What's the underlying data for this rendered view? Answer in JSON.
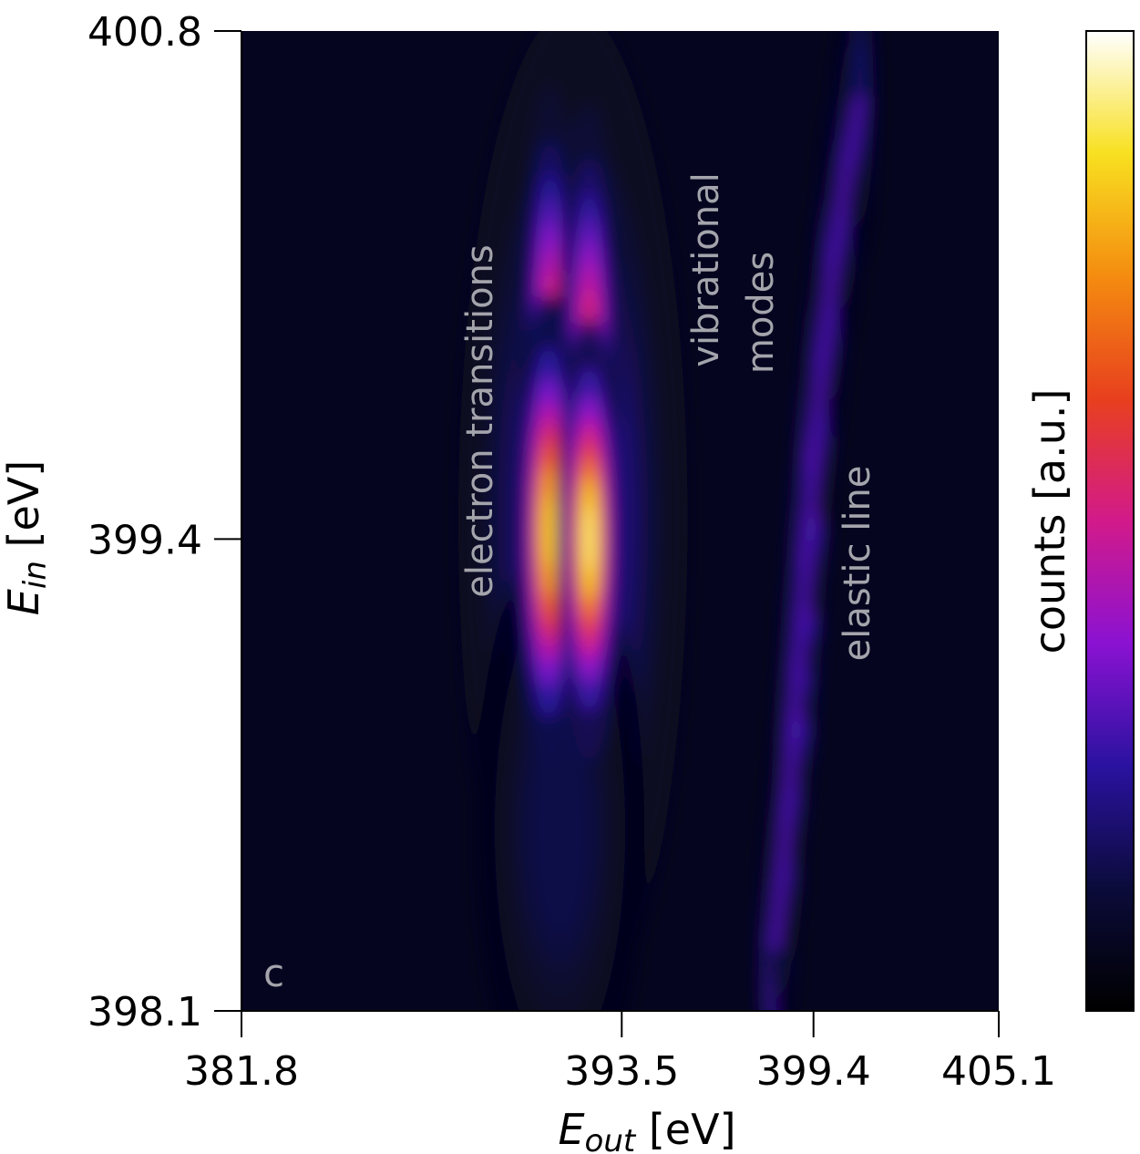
{
  "chart_data": {
    "type": "heatmap",
    "panel_label": "c",
    "xlabel": {
      "main": "E",
      "sub": "out",
      "unit": " [eV]"
    },
    "ylabel": {
      "main": "E",
      "sub": "in",
      "unit": " [eV]"
    },
    "xlim": [
      381.8,
      405.1
    ],
    "ylim": [
      398.1,
      400.8
    ],
    "xticks": [
      "381.8",
      "393.5",
      "399.4",
      "405.1"
    ],
    "yticks": [
      "398.1",
      "399.4",
      "400.8"
    ],
    "colorbar": {
      "label": "counts [a.u.]",
      "colormap": [
        "#000000",
        "#0b0b3a",
        "#2a12a0",
        "#8a12d2",
        "#d21a8a",
        "#e8401e",
        "#f48c10",
        "#f8e020",
        "#ffffff"
      ]
    },
    "background_color": "#05051f",
    "annotations": [
      {
        "text": "electron transitions",
        "x": 389.7,
        "y": 399.9
      },
      {
        "text": "vibrational modes",
        "lines": [
          "vibrational",
          "modes"
        ],
        "x": 398.0,
        "y": 400.2
      },
      {
        "text": "elastic line",
        "x": 401.1,
        "y": 399.3
      }
    ],
    "features": [
      {
        "name": "electron-transitions-halo",
        "x": 392.0,
        "y": 399.45,
        "sx": 1.5,
        "sy": 0.6,
        "peak": 0.3
      },
      {
        "name": "electron-transitions-tail",
        "x": 391.6,
        "y": 398.6,
        "sx": 1.1,
        "sy": 0.35,
        "peak": 0.14
      },
      {
        "name": "electron-transitions-left-upper",
        "x": 391.3,
        "y": 399.95,
        "sx": 0.4,
        "sy": 0.3,
        "peak": 0.55
      },
      {
        "name": "electron-transitions-right-upper",
        "x": 392.5,
        "y": 399.9,
        "sx": 0.4,
        "sy": 0.3,
        "peak": 0.58
      },
      {
        "name": "electron-transitions-left-peak",
        "x": 391.25,
        "y": 399.42,
        "sx": 0.42,
        "sy": 0.28,
        "peak": 0.86
      },
      {
        "name": "electron-transitions-right-peak",
        "x": 392.5,
        "y": 399.4,
        "sx": 0.42,
        "sy": 0.26,
        "peak": 0.93
      }
    ],
    "elastic_line": [
      {
        "x": 398.2,
        "y": 398.27,
        "peak": 0.38
      },
      {
        "x": 398.45,
        "y": 398.5,
        "peak": 0.25
      },
      {
        "x": 398.65,
        "y": 398.7,
        "peak": 0.3
      },
      {
        "x": 398.85,
        "y": 398.95,
        "peak": 0.4
      },
      {
        "x": 399.05,
        "y": 399.15,
        "peak": 0.6
      },
      {
        "x": 399.2,
        "y": 399.35,
        "peak": 0.78
      },
      {
        "x": 399.3,
        "y": 399.48,
        "peak": 0.75
      },
      {
        "x": 399.45,
        "y": 399.65,
        "peak": 0.45
      },
      {
        "x": 399.7,
        "y": 399.9,
        "peak": 0.3
      },
      {
        "x": 400.0,
        "y": 400.15,
        "peak": 0.24
      },
      {
        "x": 400.4,
        "y": 400.4,
        "peak": 0.2
      },
      {
        "x": 400.85,
        "y": 400.62,
        "peak": 0.18
      }
    ]
  }
}
